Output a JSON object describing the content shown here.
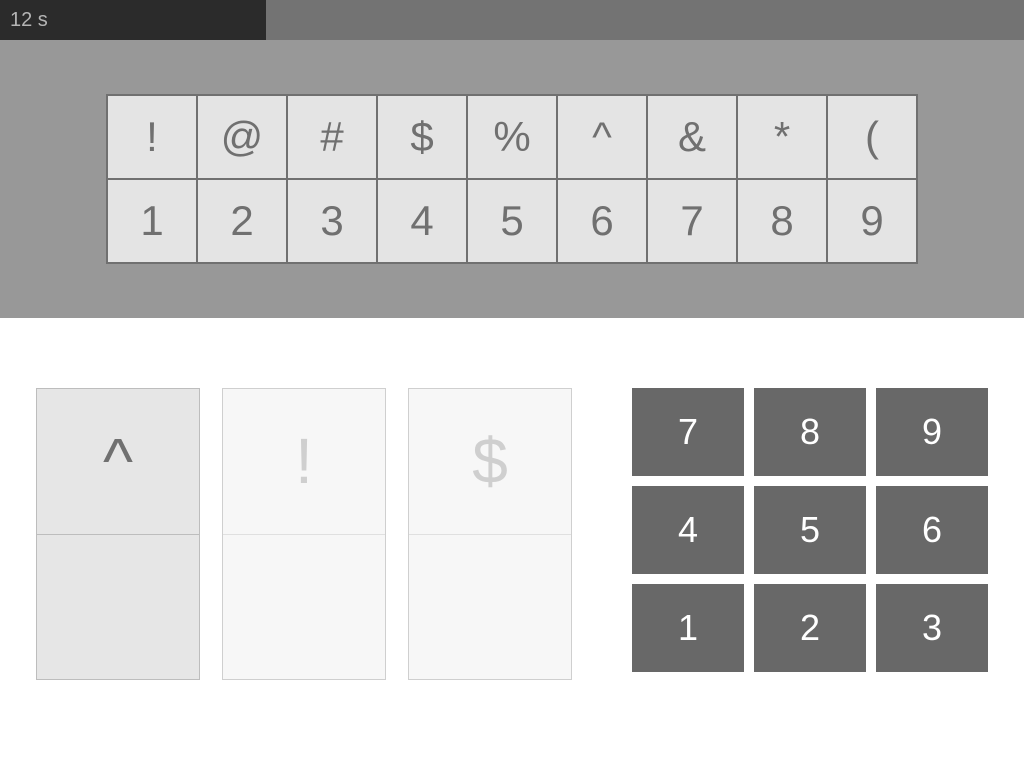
{
  "timer": {
    "label": "12 s",
    "progress_pct": 26,
    "bar_bg": "#737373",
    "bar_fill": "#2b2b2b",
    "text_color": "#b5b5b5"
  },
  "reference": {
    "bg": "#989898",
    "cell_bg": "#e4e4e4",
    "cell_border": "#707070",
    "cell_text": "#707070",
    "rows": [
      [
        "!",
        "@",
        "#",
        "$",
        "%",
        "^",
        "&",
        "*",
        "("
      ],
      [
        "1",
        "2",
        "3",
        "4",
        "5",
        "6",
        "7",
        "8",
        "9"
      ]
    ]
  },
  "cards": {
    "items": [
      {
        "symbol": "^",
        "answer": "",
        "active": true
      },
      {
        "symbol": "!",
        "answer": "",
        "active": false
      },
      {
        "symbol": "$",
        "answer": "",
        "active": false
      }
    ],
    "inactive_bg": "#f7f7f7",
    "inactive_border": "#cfcfcf",
    "inactive_text": "#cfcfcf",
    "active_bg": "#e6e6e6",
    "active_border": "#bdbdbd",
    "active_text": "#707070"
  },
  "keypad": {
    "keys": [
      "7",
      "8",
      "9",
      "4",
      "5",
      "6",
      "1",
      "2",
      "3"
    ],
    "key_bg": "#686868",
    "key_text": "#ffffff"
  }
}
